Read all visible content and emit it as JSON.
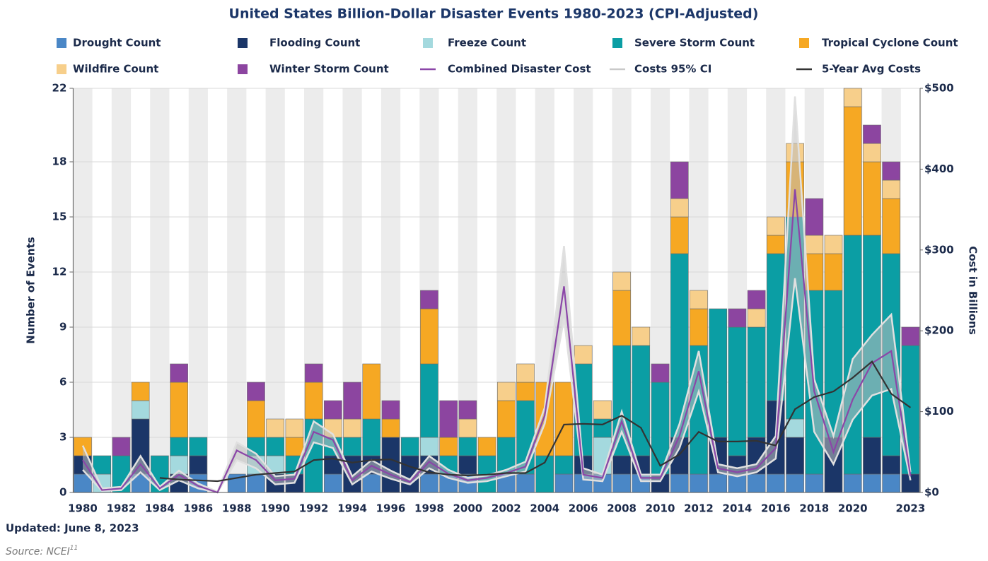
{
  "chart_data": {
    "type": "bar",
    "title": "United States Billion-Dollar Disaster Events 1980-2023 (CPI-Adjusted)",
    "y_label": "Number of Events",
    "y2_label": "Cost in Billions",
    "categories": [
      "1980",
      null,
      "1982",
      null,
      "1984",
      null,
      "1986",
      null,
      "1988",
      null,
      "1990",
      null,
      "1992",
      null,
      "1994",
      null,
      "1996",
      null,
      "1998",
      null,
      "2000",
      null,
      "2002",
      null,
      "2004",
      null,
      "2006",
      null,
      "2008",
      null,
      "2010",
      null,
      "2012",
      null,
      "2014",
      null,
      "2016",
      null,
      "2018",
      null,
      "2020",
      null,
      null,
      "2023"
    ],
    "ylim": [
      0,
      22
    ],
    "yticks": [
      0,
      3,
      6,
      9,
      12,
      15,
      18,
      22
    ],
    "y2lim": [
      0,
      500
    ],
    "y2ticks": [
      {
        "value": 0,
        "label": "$0"
      },
      {
        "value": 100,
        "label": "$100"
      },
      {
        "value": 200,
        "label": "$200"
      },
      {
        "value": 300,
        "label": "$300"
      },
      {
        "value": 400,
        "label": "$400"
      },
      {
        "value": 500,
        "label": "$500"
      }
    ],
    "grid": true,
    "stacked": true,
    "series": [
      {
        "name": "Drought Count",
        "color": "#4a87c6",
        "values": [
          1,
          0,
          0,
          1,
          0,
          0,
          1,
          0,
          1,
          1,
          0,
          0,
          0,
          1,
          0,
          1,
          0,
          0,
          1,
          1,
          1,
          0,
          1,
          1,
          0,
          1,
          1,
          1,
          1,
          1,
          0,
          1,
          1,
          1,
          1,
          1,
          1,
          1,
          1,
          0,
          1,
          1,
          1,
          0
        ]
      },
      {
        "name": "Flooding Count",
        "color": "#1b3668",
        "values": [
          1,
          0,
          0,
          3,
          0,
          1,
          1,
          0,
          0,
          0,
          1,
          1,
          0,
          1,
          2,
          1,
          3,
          2,
          1,
          0,
          1,
          0,
          0,
          0,
          0,
          0,
          1,
          0,
          1,
          1,
          1,
          2,
          0,
          2,
          1,
          2,
          4,
          2,
          0,
          3,
          0,
          2,
          1,
          1
        ]
      },
      {
        "name": "Freeze Count",
        "color": "#a4d9de",
        "values": [
          0,
          1,
          0,
          1,
          0,
          1,
          0,
          0,
          0,
          1,
          1,
          0,
          0,
          0,
          0,
          0,
          0,
          0,
          1,
          0,
          0,
          0,
          0,
          0,
          0,
          0,
          0,
          2,
          0,
          0,
          0,
          0,
          0,
          0,
          0,
          0,
          0,
          1,
          0,
          0,
          0,
          0,
          0,
          0
        ]
      },
      {
        "name": "Severe Storm Count",
        "color": "#0b9ea4",
        "values": [
          0,
          1,
          2,
          0,
          2,
          1,
          1,
          0,
          0,
          1,
          1,
          1,
          4,
          1,
          1,
          2,
          0,
          1,
          4,
          1,
          1,
          2,
          2,
          4,
          2,
          1,
          5,
          1,
          6,
          6,
          5,
          10,
          7,
          7,
          7,
          6,
          8,
          11,
          10,
          8,
          13,
          11,
          11,
          7
        ]
      },
      {
        "name": "Tropical Cyclone Count",
        "color": "#f6a823",
        "values": [
          1,
          0,
          0,
          1,
          0,
          3,
          0,
          0,
          0,
          2,
          0,
          1,
          2,
          0,
          0,
          3,
          1,
          0,
          3,
          1,
          0,
          1,
          2,
          1,
          4,
          4,
          0,
          0,
          3,
          0,
          0,
          2,
          2,
          0,
          0,
          0,
          1,
          3,
          2,
          2,
          7,
          4,
          3,
          0
        ]
      },
      {
        "name": "Wildfire Count",
        "color": "#f7cf8b",
        "values": [
          0,
          0,
          0,
          0,
          0,
          0,
          0,
          0,
          0,
          0,
          1,
          1,
          0,
          1,
          1,
          0,
          0,
          0,
          0,
          0,
          1,
          0,
          1,
          1,
          0,
          0,
          1,
          1,
          1,
          1,
          0,
          1,
          1,
          0,
          0,
          1,
          1,
          1,
          1,
          1,
          1,
          1,
          1,
          0
        ]
      },
      {
        "name": "Winter Storm Count",
        "color": "#8c45a0",
        "values": [
          0,
          0,
          1,
          0,
          0,
          1,
          0,
          0,
          0,
          1,
          0,
          0,
          1,
          1,
          2,
          0,
          1,
          0,
          1,
          2,
          1,
          0,
          0,
          0,
          0,
          0,
          0,
          0,
          0,
          0,
          1,
          2,
          0,
          0,
          1,
          1,
          0,
          0,
          2,
          0,
          0,
          1,
          1,
          1
        ]
      },
      {
        "name": "Combined Disaster Cost",
        "type": "line",
        "axis": "y2",
        "color": "#8b46a8",
        "values": [
          40,
          3,
          5,
          35,
          5,
          22,
          8,
          0,
          52,
          40,
          15,
          17,
          75,
          65,
          15,
          33,
          22,
          13,
          38,
          23,
          15,
          18,
          24,
          32,
          95,
          255,
          22,
          18,
          88,
          18,
          18,
          70,
          150,
          30,
          25,
          30,
          55,
          375,
          125,
          50,
          115,
          160,
          175,
          20
        ]
      },
      {
        "name": "Costs 95% CI",
        "type": "band",
        "axis": "y2",
        "color": "#c9c9c9",
        "lower": [
          28,
          2,
          3,
          25,
          3,
          15,
          5,
          0,
          40,
          30,
          10,
          12,
          62,
          55,
          10,
          26,
          17,
          10,
          30,
          18,
          12,
          14,
          20,
          26,
          85,
          215,
          16,
          14,
          75,
          14,
          14,
          55,
          125,
          25,
          20,
          25,
          42,
          265,
          75,
          35,
          90,
          120,
          128,
          15
        ],
        "upper": [
          58,
          5,
          7,
          45,
          7,
          27,
          11,
          1,
          62,
          48,
          20,
          22,
          88,
          72,
          20,
          40,
          27,
          16,
          45,
          28,
          18,
          21,
          28,
          38,
          105,
          305,
          30,
          22,
          100,
          22,
          22,
          85,
          175,
          35,
          30,
          35,
          70,
          490,
          140,
          70,
          165,
          195,
          220,
          25
        ]
      },
      {
        "name": "5-Year Avg Costs",
        "type": "line",
        "axis": "y2",
        "color": "#333333",
        "values": [
          null,
          null,
          null,
          null,
          18,
          16,
          15,
          14,
          18,
          22,
          24,
          26,
          40,
          42,
          37,
          40,
          41,
          32,
          25,
          22,
          21,
          22,
          24,
          24,
          37,
          84,
          85,
          84,
          95,
          80,
          33,
          47,
          75,
          63,
          63,
          64,
          58,
          103,
          118,
          125,
          142,
          162,
          122,
          105
        ]
      }
    ]
  },
  "updated": "Updated: June 8, 2023",
  "source": "Source: NCEI",
  "source_ref": "11"
}
